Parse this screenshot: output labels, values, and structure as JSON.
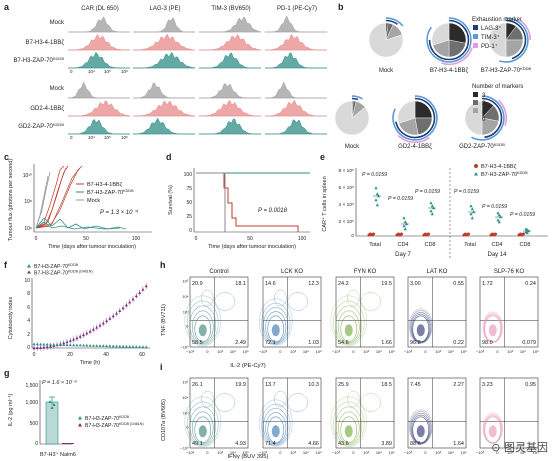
{
  "panel_a": {
    "letter": "a",
    "columns": [
      "CAR (DL 650)",
      "LAG-3 (PE)",
      "TIM-3 (BV650)",
      "PD-1 (PE-Cy7)"
    ],
    "rows": [
      "Mock",
      "B7-H3-4-1BBζ",
      "B7-H3-ZAP-70",
      "Mock",
      "GD2-4-1BBζ",
      "GD2-ZAP-70"
    ],
    "row_superscripts": [
      "",
      "",
      "KDDB",
      "",
      "",
      "KDDB"
    ],
    "tick_labels": [
      "0",
      "10⁴",
      "10⁵",
      "10⁶"
    ],
    "colors": {
      "mock": "#9e9e9e",
      "fourbb": "#e88a8a",
      "zap": "#2f8c86"
    }
  },
  "panel_b": {
    "letter": "b",
    "legend1_title": "Exhaustion marker",
    "legend1": [
      "LAG-3⁺",
      "TIM-3⁺",
      "PD-1⁺"
    ],
    "legend1_colors": [
      "#1f3f7a",
      "#5b9bd5",
      "#e29ce0"
    ],
    "legend2_title": "Number of markers",
    "legend2": [
      "3",
      "2",
      "1",
      "0"
    ],
    "legend2_colors": [
      "#2b2b2b",
      "#6f6f6f",
      "#a5a5a5",
      "#d9d9d9"
    ],
    "pies": [
      {
        "label": "Mock",
        "sup": ""
      },
      {
        "label": "B7-H3-4-1BBζ",
        "sup": ""
      },
      {
        "label": "B7-H3-ZAP-70",
        "sup": "KDDB"
      },
      {
        "label": "Mock",
        "sup": ""
      },
      {
        "label": "GD2-4-1BBζ",
        "sup": ""
      },
      {
        "label": "GD2-ZAP-70",
        "sup": "KDDB"
      }
    ]
  },
  "panel_c": {
    "letter": "c",
    "ylabel": "Tumour flux (photons per second)",
    "yticks": [
      "10¹⁰",
      "10⁸",
      "10⁶"
    ],
    "xticks": [
      "0",
      "50",
      "100"
    ],
    "xlabel": "Time (days after tumour inoculation)",
    "legend": [
      "B7-H3-4-1BBζ",
      "B7-H3-ZAP-70",
      "Mock"
    ],
    "legend_sup": [
      "",
      "KDDB",
      ""
    ],
    "pvalue": "P = 1.3 × 10⁻⁴"
  },
  "panel_d": {
    "letter": "d",
    "ylabel": "Survival (%)",
    "yticks": [
      "100",
      "75",
      "50",
      "25",
      "0"
    ],
    "xticks": [
      "0",
      "50",
      "100"
    ],
    "xlabel": "Time (days after tumour inoculation)",
    "pvalue": "P = 0.0018"
  },
  "panel_e": {
    "letter": "e",
    "ylabel": "CAR⁺ T cells in spleen",
    "yticks": [
      "8 × 10⁵",
      "6 × 10⁵",
      "4 × 10⁵",
      "2 × 10⁵",
      "0"
    ],
    "categories": [
      "Total",
      "CD4",
      "CD8",
      "Total",
      "CD4",
      "CD8"
    ],
    "groups": [
      "Day 7",
      "Day 14"
    ],
    "legend": [
      "B7-H3-4-1BBζ",
      "B7-H3-ZAP-70"
    ],
    "legend_sup": [
      "",
      "KDDB"
    ],
    "pvalues": [
      "P = 0.0159",
      "P = 0.0159",
      "P = 0.0159",
      "P = 0.0159",
      "P = 0.0159",
      "P = 0.0159"
    ]
  },
  "panel_f": {
    "letter": "f",
    "ylabel": "Cytotoxicity index",
    "yticks": [
      "10",
      "8",
      "6",
      "4",
      "2",
      "0"
    ],
    "xticks": [
      "0",
      "20",
      "40",
      "60"
    ],
    "xlabel": "Time (h)",
    "legend": [
      "B7-H3-ZAP-70",
      "B7-H3-ZAP-70"
    ],
    "legend_sup": [
      "KDDB",
      "KDDB (D461N)"
    ]
  },
  "panel_g": {
    "letter": "g",
    "ylabel": "IL-2 (pg ml⁻¹)",
    "yticks": [
      "1,500",
      "1,000",
      "500",
      "0"
    ],
    "pvalue": "P = 1.6 × 10⁻⁵",
    "legend": [
      "B7-H3-ZAP-70",
      "B7-H3-ZAP-70"
    ],
    "legend_sup": [
      "KDDB",
      "KDDB (D461N)"
    ],
    "xlabel": "B7-H3⁺ Nalm6"
  },
  "panel_h": {
    "letter": "h",
    "titles": [
      "Control",
      "LCK KO",
      "FYN KO",
      "LAT KO",
      "SLP-76 KO"
    ],
    "quadrants": [
      [
        "20.9",
        "18.1",
        "58.5",
        "2.49"
      ],
      [
        "14.6",
        "12.3",
        "72.1",
        "1.03"
      ],
      [
        "24.2",
        "19.5",
        "54.6",
        "1.66"
      ],
      [
        "3.00",
        "0.55",
        "96.2",
        "0.22"
      ],
      [
        "1.72",
        "0.24",
        "98.0",
        "0.079"
      ]
    ],
    "ylabel": "TNF (BV711)",
    "xlabel": "IL-2 (PE-Cy7)",
    "ticks": [
      "−10³",
      "0",
      "10³",
      "10⁴",
      "10⁵"
    ],
    "colors": [
      "#2f7d74",
      "#2f6fad",
      "#6aa636",
      "#1f2a6b",
      "#e58fb0"
    ]
  },
  "panel_i": {
    "letter": "i",
    "quadrants": [
      [
        "26.1",
        "19.9",
        "49.1",
        "4.93"
      ],
      [
        "13.7",
        "10.3",
        "71.4",
        "4.66"
      ],
      [
        "25.9",
        "18.5",
        "43.6",
        "3.89"
      ],
      [
        "7.45",
        "2.27",
        "88.6",
        "1.64"
      ],
      [
        "3.23",
        "0.95",
        "",
        ""
      ]
    ],
    "ylabel": "CD107a (BV605)",
    "xlabel": "IFNγ (BUV 395)",
    "ticks": [
      "−10³",
      "0",
      "10³",
      "10⁴",
      "10⁵"
    ]
  },
  "watermark": "⊙ 图灵基因"
}
